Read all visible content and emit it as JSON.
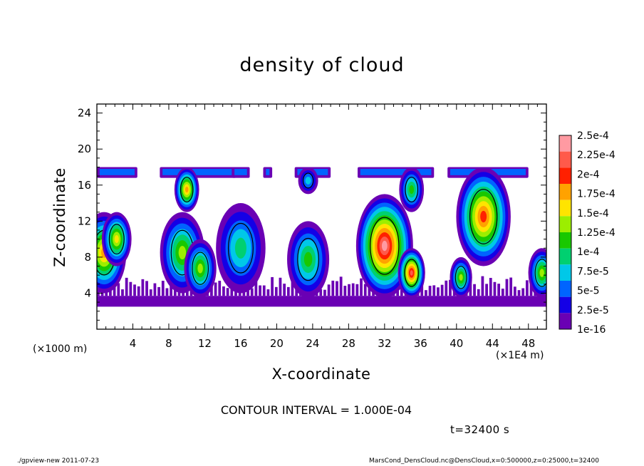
{
  "chart_data": {
    "type": "heatmap",
    "title": "density of cloud",
    "xlabel": "X-coordinate",
    "ylabel": "Z-coordinate",
    "x_unit_note": "(×1000 m)",
    "x_unit_note_right": "(×1E4 m)",
    "xlim": [
      0,
      50
    ],
    "ylim": [
      0,
      25
    ],
    "x_ticks": [
      4,
      8,
      12,
      16,
      20,
      24,
      28,
      32,
      36,
      40,
      44,
      48
    ],
    "y_ticks": [
      4,
      8,
      12,
      16,
      20,
      24
    ],
    "colorbar": {
      "labels": [
        "2.5e-4",
        "2.25e-4",
        "2e-4",
        "1.75e-4",
        "1.5e-4",
        "1.25e-4",
        "1e-4",
        "7.5e-5",
        "5e-5",
        "2.5e-5",
        "1e-16"
      ],
      "colors": [
        "#ff9aa2",
        "#ff5a4a",
        "#ff2000",
        "#ffa200",
        "#ffe400",
        "#9cee00",
        "#19c800",
        "#00d070",
        "#00c8e8",
        "#0064ff",
        "#1400e6",
        "#6a00b4"
      ]
    },
    "cloud_base": 2.5,
    "cloud_top": 18,
    "plumes": [
      {
        "x": 0.8,
        "bottom": 4,
        "top": 13,
        "max": "1.75e-4"
      },
      {
        "x": 2.2,
        "bottom": 7,
        "top": 13,
        "max": "1.5e-4"
      },
      {
        "x": 10,
        "bottom": 13,
        "top": 18,
        "max": "1.75e-4"
      },
      {
        "x": 9.5,
        "bottom": 4,
        "top": 13,
        "max": "1.25e-4"
      },
      {
        "x": 11.5,
        "bottom": 3.5,
        "top": 10,
        "max": "1.25e-4"
      },
      {
        "x": 16,
        "bottom": 4,
        "top": 14,
        "max": "7.5e-5"
      },
      {
        "x": 23.5,
        "bottom": 15,
        "top": 18,
        "max": "5e-5"
      },
      {
        "x": 23.5,
        "bottom": 3.5,
        "top": 12,
        "max": "1e-4"
      },
      {
        "x": 32,
        "bottom": 3.5,
        "top": 15,
        "max": "2.5e-4"
      },
      {
        "x": 35,
        "bottom": 3.5,
        "top": 9,
        "max": "2.25e-4"
      },
      {
        "x": 35,
        "bottom": 13,
        "top": 18,
        "max": "1e-4"
      },
      {
        "x": 43,
        "bottom": 7,
        "top": 18,
        "max": "2e-4"
      },
      {
        "x": 40.5,
        "bottom": 3.5,
        "top": 8,
        "max": "1.25e-4"
      },
      {
        "x": 49.5,
        "bottom": 3.5,
        "top": 9,
        "max": "1.25e-4"
      }
    ],
    "annotation": "CONTOUR INTERVAL = 1.000E-04",
    "time_label": "t=32400 s"
  },
  "footer": {
    "left": "./gpview-new   2011-07-23",
    "right": "MarsCond_DensCloud.nc@DensCloud,x=0:500000,z=0:25000,t=32400"
  }
}
